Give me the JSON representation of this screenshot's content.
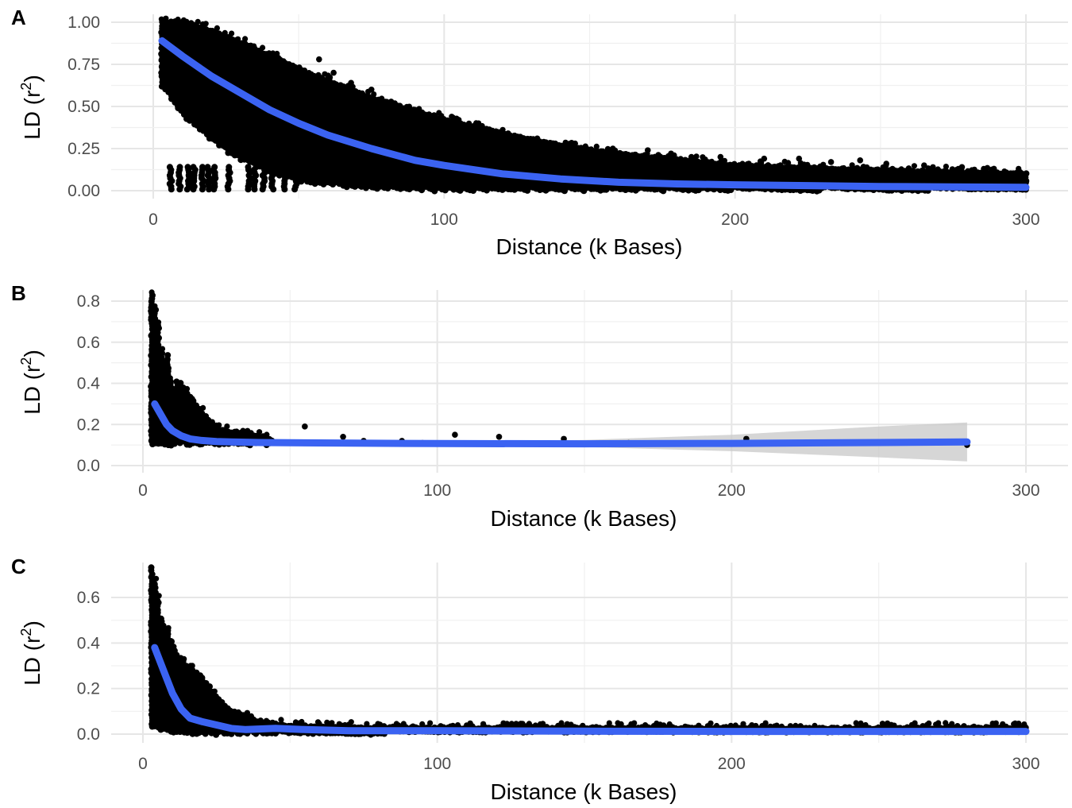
{
  "chart_data": [
    {
      "panel": "A",
      "type": "scatter",
      "xlabel": "Distance (k Bases)",
      "ylabel_base": "LD (r",
      "ylabel_sup": "2",
      "ylabel_tail": ")",
      "xlim": [
        0,
        300
      ],
      "ylim": [
        0,
        1.0
      ],
      "xticks": [
        0,
        100,
        200,
        300
      ],
      "xtick_labels": [
        "0",
        "100",
        "200",
        "300"
      ],
      "yticks": [
        0,
        0.25,
        0.5,
        0.75,
        1.0
      ],
      "ytick_labels": [
        "0.00",
        "0.25",
        "0.50",
        "0.75",
        "1.00"
      ],
      "grid": true,
      "envelope": {
        "x": [
          3,
          10,
          20,
          30,
          50,
          75,
          100,
          130,
          150,
          175,
          200,
          250,
          300
        ],
        "upper": [
          1.0,
          1.0,
          0.95,
          0.88,
          0.72,
          0.55,
          0.42,
          0.3,
          0.24,
          0.19,
          0.15,
          0.12,
          0.1
        ],
        "lower": [
          0.62,
          0.45,
          0.3,
          0.18,
          0.05,
          0.01,
          0.0,
          0.0,
          0.0,
          0.0,
          0.0,
          0.0,
          0.0
        ]
      },
      "outlier_points": [
        {
          "x": 57,
          "y": 0.78
        },
        {
          "x": 62,
          "y": 0.7
        },
        {
          "x": 68,
          "y": 0.64
        },
        {
          "x": 75,
          "y": 0.6
        },
        {
          "x": 82,
          "y": 0.52
        },
        {
          "x": 90,
          "y": 0.48
        },
        {
          "x": 97,
          "y": 0.44
        },
        {
          "x": 105,
          "y": 0.42
        },
        {
          "x": 113,
          "y": 0.38
        },
        {
          "x": 122,
          "y": 0.34
        },
        {
          "x": 132,
          "y": 0.31
        },
        {
          "x": 145,
          "y": 0.28
        },
        {
          "x": 158,
          "y": 0.25
        },
        {
          "x": 170,
          "y": 0.24
        },
        {
          "x": 178,
          "y": 0.22
        },
        {
          "x": 185,
          "y": 0.2
        },
        {
          "x": 195,
          "y": 0.2
        },
        {
          "x": 210,
          "y": 0.19
        },
        {
          "x": 222,
          "y": 0.19
        },
        {
          "x": 233,
          "y": 0.17
        },
        {
          "x": 243,
          "y": 0.18
        },
        {
          "x": 252,
          "y": 0.16
        },
        {
          "x": 265,
          "y": 0.15
        },
        {
          "x": 278,
          "y": 0.14
        },
        {
          "x": 289,
          "y": 0.13
        },
        {
          "x": 298,
          "y": 0.11
        }
      ],
      "bars_x": [
        6,
        9,
        12,
        14,
        17,
        19,
        21,
        26,
        33,
        35,
        38,
        41,
        45,
        49
      ],
      "bars_range": [
        0.0,
        0.14
      ],
      "fit": {
        "x": [
          3,
          10,
          20,
          30,
          40,
          50,
          60,
          75,
          90,
          100,
          120,
          140,
          160,
          180,
          200,
          225,
          250,
          275,
          300
        ],
        "y": [
          0.89,
          0.8,
          0.68,
          0.58,
          0.48,
          0.4,
          0.33,
          0.25,
          0.18,
          0.15,
          0.1,
          0.07,
          0.05,
          0.04,
          0.035,
          0.03,
          0.025,
          0.022,
          0.02
        ]
      }
    },
    {
      "panel": "B",
      "type": "scatter",
      "xlabel": "Distance (k Bases)",
      "ylabel_base": "LD (r",
      "ylabel_sup": "2",
      "ylabel_tail": ")",
      "xlim": [
        0,
        300
      ],
      "ylim": [
        0,
        0.8
      ],
      "xticks": [
        0,
        100,
        200,
        300
      ],
      "xtick_labels": [
        "0",
        "100",
        "200",
        "300"
      ],
      "yticks": [
        0,
        0.2,
        0.4,
        0.6,
        0.8
      ],
      "ytick_labels": [
        "0.0",
        "0.2",
        "0.4",
        "0.6",
        "0.8"
      ],
      "grid": true,
      "envelope": {
        "x": [
          3,
          5,
          7,
          8,
          10,
          12,
          15,
          20,
          25,
          30,
          35,
          40,
          45
        ],
        "upper": [
          0.83,
          0.7,
          0.45,
          0.58,
          0.35,
          0.42,
          0.35,
          0.26,
          0.18,
          0.16,
          0.15,
          0.14,
          0.12
        ],
        "lower": [
          0.1,
          0.1,
          0.1,
          0.1,
          0.1,
          0.1,
          0.1,
          0.1,
          0.1,
          0.1,
          0.1,
          0.1,
          0.1
        ]
      },
      "outlier_points": [
        {
          "x": 55,
          "y": 0.19
        },
        {
          "x": 106,
          "y": 0.15
        },
        {
          "x": 121,
          "y": 0.14
        },
        {
          "x": 143,
          "y": 0.13
        },
        {
          "x": 68,
          "y": 0.14
        },
        {
          "x": 75,
          "y": 0.12
        },
        {
          "x": 88,
          "y": 0.12
        },
        {
          "x": 95,
          "y": 0.11
        },
        {
          "x": 165,
          "y": 0.11
        },
        {
          "x": 205,
          "y": 0.13
        },
        {
          "x": 280,
          "y": 0.1
        }
      ],
      "bars_x": [],
      "bars_range": [
        0,
        0
      ],
      "fit": {
        "x": [
          4,
          6,
          8,
          10,
          13,
          16,
          20,
          25,
          30,
          40,
          60,
          100,
          150,
          200,
          250,
          280
        ],
        "y": [
          0.3,
          0.25,
          0.2,
          0.17,
          0.145,
          0.13,
          0.122,
          0.117,
          0.115,
          0.112,
          0.11,
          0.107,
          0.106,
          0.108,
          0.112,
          0.115
        ]
      },
      "ci_band": {
        "x": [
          4,
          20,
          100,
          150,
          200,
          250,
          280
        ],
        "upper": [
          0.32,
          0.13,
          0.115,
          0.125,
          0.15,
          0.19,
          0.21
        ],
        "lower": [
          0.28,
          0.115,
          0.1,
          0.09,
          0.07,
          0.04,
          0.02
        ]
      }
    },
    {
      "panel": "C",
      "type": "scatter",
      "xlabel": "Distance (k Bases)",
      "ylabel_base": "LD (r",
      "ylabel_sup": "2",
      "ylabel_tail": ")",
      "xlim": [
        0,
        300
      ],
      "ylim": [
        0,
        0.7
      ],
      "xticks": [
        0,
        100,
        200,
        300
      ],
      "xtick_labels": [
        "0",
        "100",
        "200",
        "300"
      ],
      "yticks": [
        0,
        0.2,
        0.4,
        0.6
      ],
      "ytick_labels": [
        "0.0",
        "0.2",
        "0.4",
        "0.6"
      ],
      "grid": true,
      "envelope": {
        "x": [
          3,
          5,
          7,
          8,
          10,
          12,
          15,
          20,
          25,
          30,
          40,
          50,
          70,
          100,
          150,
          200,
          250,
          300
        ],
        "upper": [
          0.73,
          0.6,
          0.45,
          0.47,
          0.38,
          0.34,
          0.3,
          0.25,
          0.16,
          0.1,
          0.05,
          0.035,
          0.03,
          0.025,
          0.025,
          0.025,
          0.025,
          0.025
        ],
        "lower": [
          0.03,
          0.02,
          0.01,
          0.01,
          0.0,
          0.0,
          0.0,
          0.0,
          0.0,
          0.0,
          0.0,
          0.0,
          0.0,
          0.0,
          0.0,
          0.0,
          0.0,
          0.0
        ]
      },
      "outlier_points": [
        {
          "x": 287,
          "y": 0.03
        },
        {
          "x": 265,
          "y": 0.035
        },
        {
          "x": 240,
          "y": 0.03
        },
        {
          "x": 220,
          "y": 0.035
        },
        {
          "x": 180,
          "y": 0.03
        },
        {
          "x": 300,
          "y": 0.01
        }
      ],
      "bars_x": [],
      "bars_range": [
        0,
        0
      ],
      "fit": {
        "x": [
          4,
          7,
          10,
          13,
          16,
          20,
          25,
          30,
          35,
          45,
          55,
          70,
          100,
          150,
          200,
          250,
          300
        ],
        "y": [
          0.38,
          0.28,
          0.18,
          0.11,
          0.07,
          0.055,
          0.04,
          0.025,
          0.02,
          0.025,
          0.02,
          0.015,
          0.015,
          0.013,
          0.012,
          0.012,
          0.012
        ]
      }
    }
  ]
}
